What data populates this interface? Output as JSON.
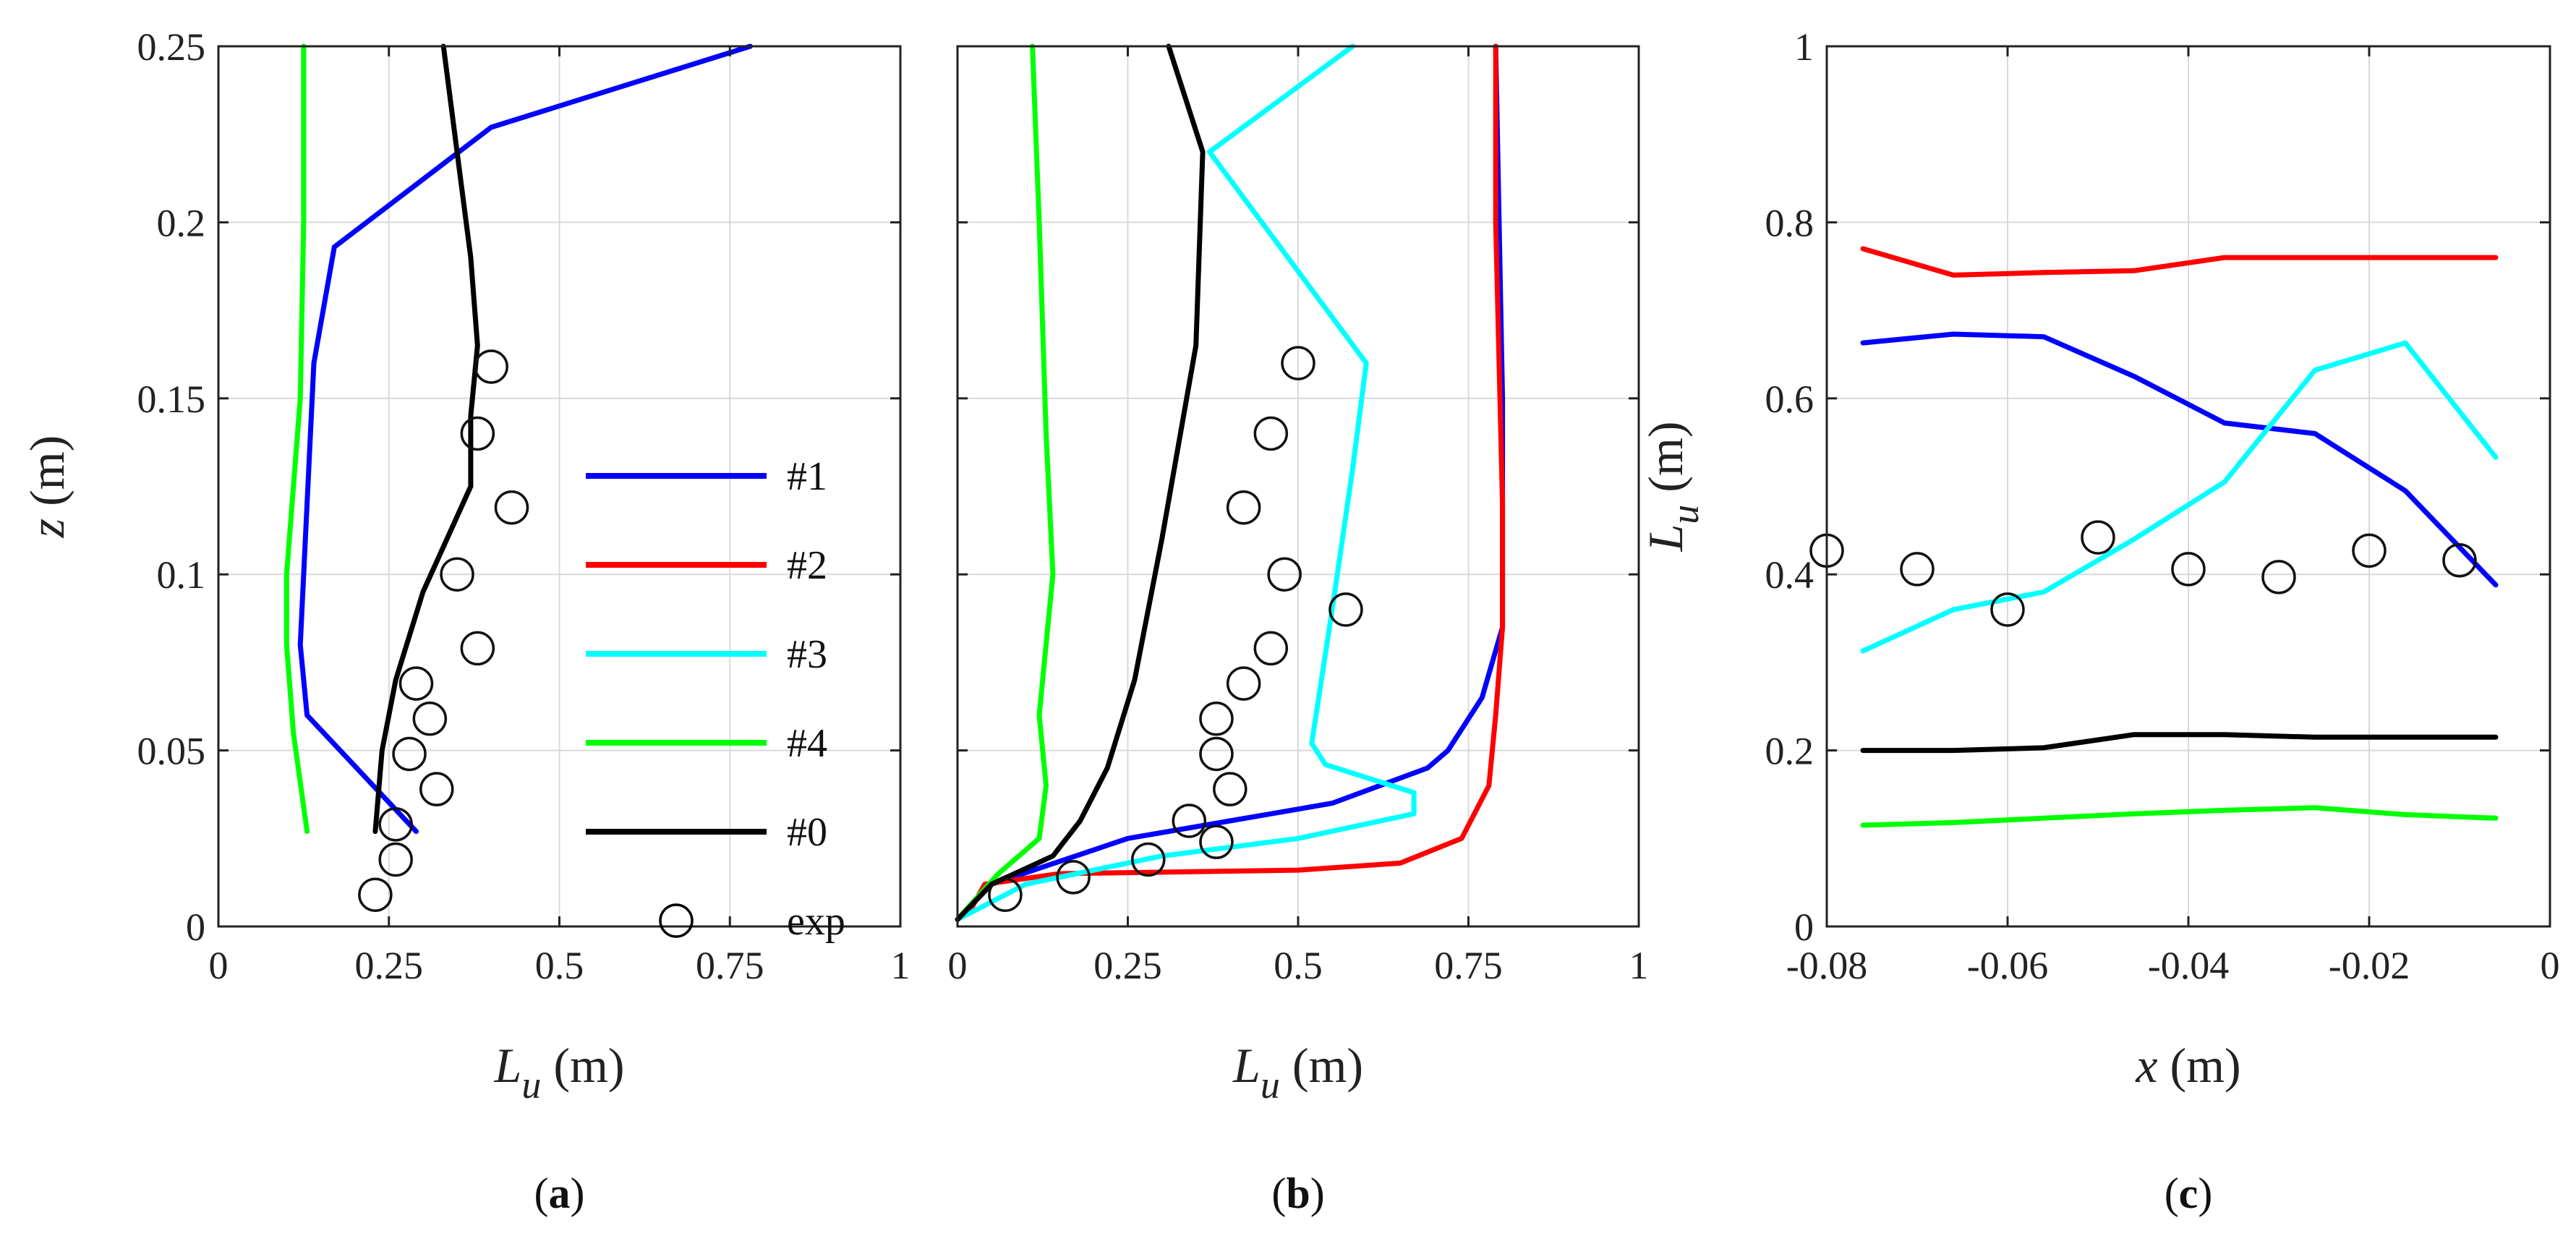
{
  "chart_data": [
    {
      "type": "line",
      "panel_label": "(a)",
      "xlabel": "L",
      "xlabel_sub": "u",
      "xlabel_unit": "(m)",
      "ylabel": "z (m)",
      "xlim": [
        0,
        1
      ],
      "ylim": [
        0,
        0.25
      ],
      "xticks": [
        0,
        0.25,
        0.5,
        0.75,
        1
      ],
      "xtick_labels": [
        "0",
        "0.25",
        "0.5",
        "0.75",
        "1"
      ],
      "yticks": [
        0,
        0.05,
        0.1,
        0.15,
        0.2,
        0.25
      ],
      "ytick_labels": [
        "0",
        "0.05",
        "0.1",
        "0.15",
        "0.2",
        "0.25"
      ],
      "grid": true,
      "series": [
        {
          "name": "#1",
          "color": "#0000ff",
          "points": [
            [
              0.78,
              0.25
            ],
            [
              0.4,
              0.227
            ],
            [
              0.17,
              0.193
            ],
            [
              0.14,
              0.16
            ],
            [
              0.13,
              0.12
            ],
            [
              0.12,
              0.08
            ],
            [
              0.13,
              0.06
            ],
            [
              0.29,
              0.027
            ]
          ]
        },
        {
          "name": "#4",
          "color": "#00ff00",
          "points": [
            [
              0.125,
              0.25
            ],
            [
              0.125,
              0.2
            ],
            [
              0.12,
              0.15
            ],
            [
              0.1,
              0.1
            ],
            [
              0.1,
              0.08
            ],
            [
              0.11,
              0.055
            ],
            [
              0.13,
              0.027
            ]
          ]
        },
        {
          "name": "#0",
          "color": "#000000",
          "points": [
            [
              0.33,
              0.25
            ],
            [
              0.35,
              0.22
            ],
            [
              0.37,
              0.19
            ],
            [
              0.38,
              0.165
            ],
            [
              0.37,
              0.145
            ],
            [
              0.37,
              0.125
            ],
            [
              0.3,
              0.095
            ],
            [
              0.26,
              0.07
            ],
            [
              0.24,
              0.05
            ],
            [
              0.23,
              0.027
            ]
          ]
        }
      ],
      "exp": [
        [
          0.23,
          0.009
        ],
        [
          0.26,
          0.019
        ],
        [
          0.26,
          0.029
        ],
        [
          0.32,
          0.039
        ],
        [
          0.28,
          0.049
        ],
        [
          0.31,
          0.059
        ],
        [
          0.29,
          0.069
        ],
        [
          0.38,
          0.079
        ],
        [
          0.35,
          0.1
        ],
        [
          0.43,
          0.119
        ],
        [
          0.38,
          0.14
        ],
        [
          0.4,
          0.159
        ]
      ]
    },
    {
      "type": "line",
      "panel_label": "(b)",
      "xlabel": "L",
      "xlabel_sub": "u",
      "xlabel_unit": "(m)",
      "ylabel": "",
      "xlim": [
        0,
        1
      ],
      "ylim": [
        0,
        0.25
      ],
      "xticks": [
        0,
        0.25,
        0.5,
        0.75,
        1
      ],
      "xtick_labels": [
        "0",
        "0.25",
        "0.5",
        "0.75",
        "1"
      ],
      "yticks": [
        0,
        0.05,
        0.1,
        0.15,
        0.2,
        0.25
      ],
      "ytick_labels": [],
      "grid": true,
      "series": [
        {
          "name": "#1",
          "color": "#0000ff",
          "points": [
            [
              0,
              0.002
            ],
            [
              0.05,
              0.012
            ],
            [
              0.25,
              0.025
            ],
            [
              0.4,
              0.03
            ],
            [
              0.55,
              0.035
            ],
            [
              0.69,
              0.045
            ],
            [
              0.72,
              0.05
            ],
            [
              0.77,
              0.065
            ],
            [
              0.8,
              0.085
            ],
            [
              0.8,
              0.15
            ],
            [
              0.79,
              0.25
            ]
          ]
        },
        {
          "name": "#2",
          "color": "#ff0000",
          "points": [
            [
              0.02,
              0.005
            ],
            [
              0.04,
              0.012
            ],
            [
              0.15,
              0.015
            ],
            [
              0.5,
              0.016
            ],
            [
              0.65,
              0.018
            ],
            [
              0.74,
              0.025
            ],
            [
              0.78,
              0.04
            ],
            [
              0.79,
              0.06
            ],
            [
              0.8,
              0.085
            ],
            [
              0.8,
              0.12
            ],
            [
              0.79,
              0.2
            ],
            [
              0.79,
              0.25
            ]
          ]
        },
        {
          "name": "#3",
          "color": "#00ffff",
          "points": [
            [
              0,
              0.002
            ],
            [
              0.1,
              0.012
            ],
            [
              0.3,
              0.02
            ],
            [
              0.5,
              0.025
            ],
            [
              0.67,
              0.032
            ],
            [
              0.67,
              0.038
            ],
            [
              0.54,
              0.046
            ],
            [
              0.52,
              0.052
            ],
            [
              0.55,
              0.09
            ],
            [
              0.58,
              0.13
            ],
            [
              0.6,
              0.16
            ],
            [
              0.37,
              0.22
            ],
            [
              0.58,
              0.25
            ]
          ]
        },
        {
          "name": "#4",
          "color": "#00ff00",
          "points": [
            [
              0,
              0.002
            ],
            [
              0.06,
              0.015
            ],
            [
              0.12,
              0.025
            ],
            [
              0.13,
              0.04
            ],
            [
              0.12,
              0.06
            ],
            [
              0.14,
              0.1
            ],
            [
              0.13,
              0.14
            ],
            [
              0.12,
              0.2
            ],
            [
              0.11,
              0.25
            ]
          ]
        },
        {
          "name": "#0",
          "color": "#000000",
          "points": [
            [
              0,
              0.002
            ],
            [
              0.05,
              0.012
            ],
            [
              0.14,
              0.02
            ],
            [
              0.18,
              0.03
            ],
            [
              0.22,
              0.045
            ],
            [
              0.26,
              0.07
            ],
            [
              0.3,
              0.11
            ],
            [
              0.35,
              0.165
            ],
            [
              0.36,
              0.22
            ],
            [
              0.31,
              0.25
            ]
          ]
        }
      ],
      "exp": [
        [
          0.07,
          0.009
        ],
        [
          0.17,
          0.014
        ],
        [
          0.28,
          0.019
        ],
        [
          0.38,
          0.024
        ],
        [
          0.34,
          0.03
        ],
        [
          0.4,
          0.039
        ],
        [
          0.38,
          0.049
        ],
        [
          0.38,
          0.059
        ],
        [
          0.42,
          0.069
        ],
        [
          0.46,
          0.079
        ],
        [
          0.57,
          0.09
        ],
        [
          0.48,
          0.1
        ],
        [
          0.42,
          0.119
        ],
        [
          0.46,
          0.14
        ],
        [
          0.5,
          0.16
        ]
      ]
    },
    {
      "type": "line",
      "panel_label": "(c)",
      "xlabel": "x (m)",
      "ylabel": "L",
      "ylabel_sub": "u",
      "ylabel_unit": "(m)",
      "xlim": [
        -0.08,
        0
      ],
      "ylim": [
        0,
        1
      ],
      "xticks": [
        -0.08,
        -0.06,
        -0.04,
        -0.02,
        0
      ],
      "xtick_labels": [
        "-0.08",
        "-0.06",
        "-0.04",
        "-0.02",
        "0"
      ],
      "yticks": [
        0,
        0.2,
        0.4,
        0.6,
        0.8,
        1
      ],
      "ytick_labels": [
        "0",
        "0.2",
        "0.4",
        "0.6",
        "0.8",
        "1"
      ],
      "grid": true,
      "series": [
        {
          "name": "#2",
          "color": "#ff0000",
          "points": [
            [
              -0.076,
              0.77
            ],
            [
              -0.066,
              0.74
            ],
            [
              -0.056,
              0.743
            ],
            [
              -0.046,
              0.745
            ],
            [
              -0.036,
              0.76
            ],
            [
              -0.026,
              0.76
            ],
            [
              -0.016,
              0.76
            ],
            [
              -0.006,
              0.76
            ]
          ]
        },
        {
          "name": "#1",
          "color": "#0000ff",
          "points": [
            [
              -0.076,
              0.663
            ],
            [
              -0.066,
              0.673
            ],
            [
              -0.056,
              0.67
            ],
            [
              -0.046,
              0.625
            ],
            [
              -0.036,
              0.572
            ],
            [
              -0.026,
              0.56
            ],
            [
              -0.016,
              0.495
            ],
            [
              -0.006,
              0.388
            ]
          ]
        },
        {
          "name": "#3",
          "color": "#00ffff",
          "points": [
            [
              -0.076,
              0.313
            ],
            [
              -0.066,
              0.36
            ],
            [
              -0.056,
              0.38
            ],
            [
              -0.046,
              0.44
            ],
            [
              -0.036,
              0.505
            ],
            [
              -0.026,
              0.632
            ],
            [
              -0.016,
              0.663
            ],
            [
              -0.006,
              0.533
            ]
          ]
        },
        {
          "name": "#0",
          "color": "#000000",
          "points": [
            [
              -0.076,
              0.2
            ],
            [
              -0.066,
              0.2
            ],
            [
              -0.056,
              0.203
            ],
            [
              -0.046,
              0.218
            ],
            [
              -0.036,
              0.218
            ],
            [
              -0.026,
              0.215
            ],
            [
              -0.016,
              0.215
            ],
            [
              -0.006,
              0.215
            ]
          ]
        },
        {
          "name": "#4",
          "color": "#00ff00",
          "points": [
            [
              -0.076,
              0.115
            ],
            [
              -0.066,
              0.118
            ],
            [
              -0.056,
              0.123
            ],
            [
              -0.046,
              0.128
            ],
            [
              -0.036,
              0.132
            ],
            [
              -0.026,
              0.135
            ],
            [
              -0.016,
              0.127
            ],
            [
              -0.006,
              0.123
            ]
          ]
        }
      ],
      "exp": [
        [
          -0.08,
          0.427
        ],
        [
          -0.07,
          0.406
        ],
        [
          -0.06,
          0.36
        ],
        [
          -0.05,
          0.442
        ],
        [
          -0.04,
          0.406
        ],
        [
          -0.03,
          0.397
        ],
        [
          -0.02,
          0.427
        ],
        [
          -0.01,
          0.416
        ]
      ]
    }
  ],
  "legend": [
    {
      "label": "#1",
      "color": "#0000ff",
      "kind": "line"
    },
    {
      "label": "#2",
      "color": "#ff0000",
      "kind": "line"
    },
    {
      "label": "#3",
      "color": "#00ffff",
      "kind": "line"
    },
    {
      "label": "#4",
      "color": "#00ff00",
      "kind": "line"
    },
    {
      "label": "#0",
      "color": "#000000",
      "kind": "line"
    },
    {
      "label": "exp",
      "color": "#000000",
      "kind": "marker"
    }
  ]
}
